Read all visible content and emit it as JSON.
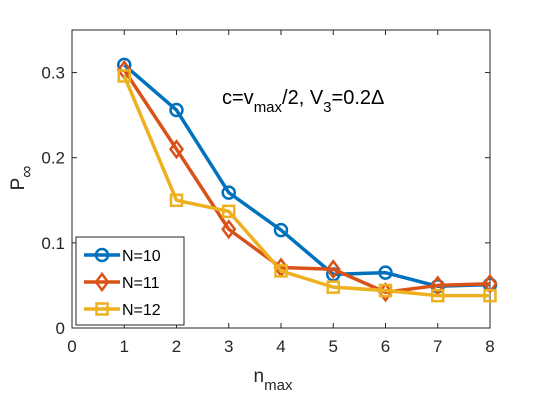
{
  "chart_data": {
    "type": "line",
    "xlabel": "n",
    "xlabel_sub": "max",
    "ylabel": "P",
    "ylabel_sub": "∞",
    "xlim": [
      0,
      8
    ],
    "ylim": [
      0,
      0.35
    ],
    "xticks": [
      0,
      1,
      2,
      3,
      4,
      5,
      6,
      7,
      8
    ],
    "yticks": [
      0,
      0.1,
      0.2,
      0.3
    ],
    "ytick_labels": [
      "0",
      "0.1",
      "0.2",
      "0.3"
    ],
    "grid": false,
    "legend_position": "bottom-left",
    "annotation": {
      "parts": [
        {
          "text": "c=v",
          "sub": false
        },
        {
          "text": "max",
          "sub": true
        },
        {
          "text": "/2, V",
          "sub": false
        },
        {
          "text": "3",
          "sub": true
        },
        {
          "text": "=0.2Δ",
          "sub": false
        }
      ]
    },
    "series": [
      {
        "name": "N=10",
        "marker": "circle",
        "color": "#0072BD",
        "x": [
          1,
          2,
          3,
          4,
          5,
          6,
          7,
          8
        ],
        "y": [
          0.309,
          0.256,
          0.159,
          0.115,
          0.063,
          0.065,
          0.049,
          0.051
        ]
      },
      {
        "name": "N=11",
        "marker": "diamond",
        "color": "#D95319",
        "x": [
          1,
          2,
          3,
          4,
          5,
          6,
          7,
          8
        ],
        "y": [
          0.303,
          0.21,
          0.116,
          0.071,
          0.069,
          0.042,
          0.05,
          0.052
        ]
      },
      {
        "name": "N=12",
        "marker": "square",
        "color": "#EDB120",
        "x": [
          1,
          2,
          3,
          4,
          5,
          6,
          7,
          8
        ],
        "y": [
          0.296,
          0.15,
          0.137,
          0.067,
          0.048,
          0.044,
          0.038,
          0.038
        ]
      }
    ]
  }
}
